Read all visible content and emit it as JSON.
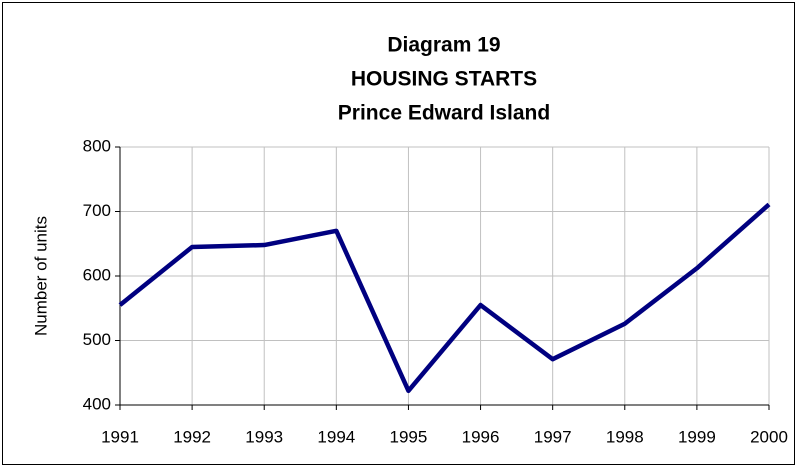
{
  "chart_data": {
    "type": "line",
    "title": [
      "Diagram 19",
      "HOUSING STARTS",
      "Prince Edward Island"
    ],
    "y_label": "Number of units",
    "categories": [
      "1991",
      "1992",
      "1993",
      "1994",
      "1995",
      "1996",
      "1997",
      "1998",
      "1999",
      "2000"
    ],
    "series": [
      {
        "name": "Housing starts",
        "color": "#000080",
        "values": [
          555,
          645,
          648,
          670,
          422,
          555,
          471,
          526,
          612,
          711
        ]
      }
    ],
    "ylim": [
      400,
      800
    ],
    "yticks": [
      400,
      500,
      600,
      700,
      800
    ],
    "grid": true
  }
}
